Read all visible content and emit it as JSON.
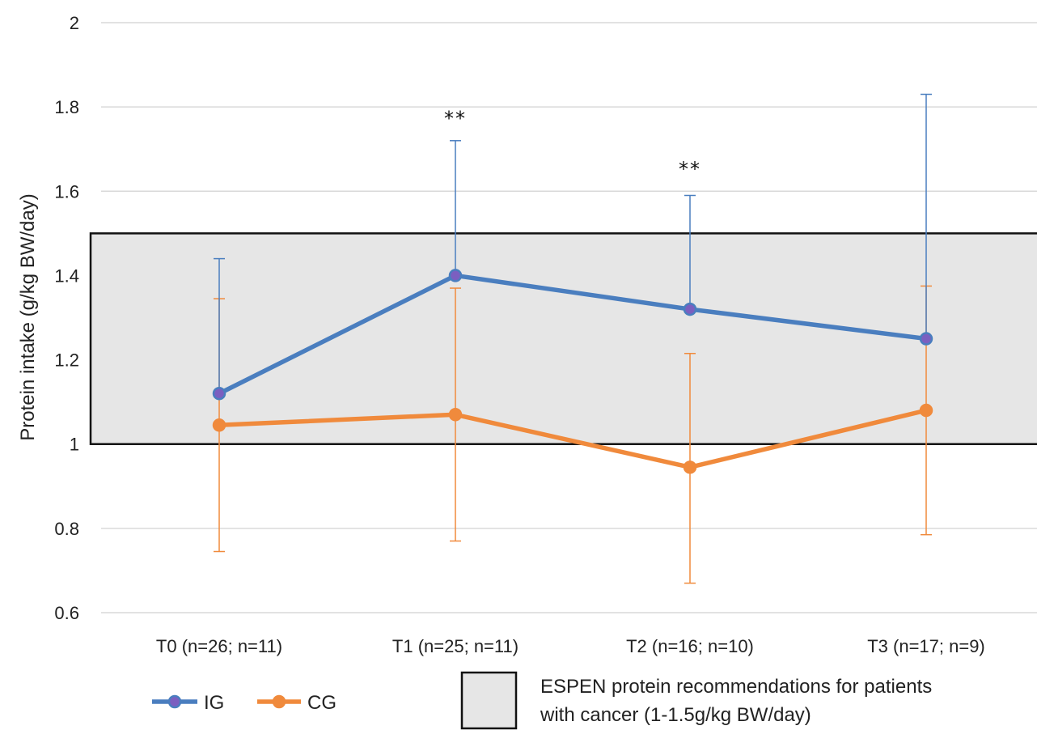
{
  "chart_data": {
    "type": "line",
    "ylabel": "Protein intake (g/kg BW/day)",
    "xlabel": "",
    "ylim": [
      0.6,
      2.0
    ],
    "yticks": [
      0.6,
      0.8,
      1.0,
      1.2,
      1.4,
      1.6,
      1.8,
      2.0
    ],
    "ytick_labels": [
      "0.6",
      "0.8",
      "1",
      "1.2",
      "1.4",
      "1.6",
      "1.8",
      "2"
    ],
    "grid": true,
    "categories": [
      "T0 (n=26; n=11)",
      "T1 (n=25; n=11)",
      "T2 (n=16; n=10)",
      "T3 (n=17; n=9)"
    ],
    "series": [
      {
        "name": "IG",
        "color": "#4a7ebf",
        "marker_fill": "#7b5fc0",
        "values": [
          1.12,
          1.4,
          1.32,
          1.25
        ],
        "error_upper": [
          1.44,
          1.72,
          1.59,
          1.83
        ],
        "error_lower": [
          null,
          null,
          null,
          null
        ]
      },
      {
        "name": "CG",
        "color": "#f08a3c",
        "marker_fill": "#f08a3c",
        "values": [
          1.045,
          1.07,
          0.945,
          1.08
        ],
        "error_upper": [
          1.345,
          1.37,
          1.215,
          1.375
        ],
        "error_lower": [
          0.745,
          0.77,
          0.67,
          0.785
        ]
      }
    ],
    "reference_band": {
      "ymin": 1.0,
      "ymax": 1.5,
      "fill": "#e6e6e6",
      "label": "ESPEN protein recommendations for patients with cancer (1-1.5g/kg BW/day)",
      "label_lines": [
        "ESPEN protein recommendations for patients",
        "with cancer (1-1.5g/kg BW/day)"
      ]
    },
    "annotations": [
      {
        "category_index": 1,
        "text": "**",
        "y": 1.78
      },
      {
        "category_index": 2,
        "text": "**",
        "y": 1.66
      }
    ],
    "legend": "bottom"
  }
}
